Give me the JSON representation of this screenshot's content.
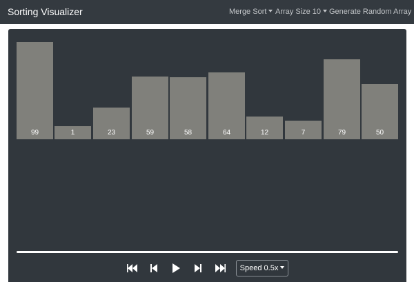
{
  "navbar": {
    "brand": "Sorting Visualizer",
    "algorithm_menu": "Merge Sort",
    "array_size_menu": "Array Size 10",
    "generate_label": "Generate Random Array"
  },
  "bars": [
    {
      "value": "99"
    },
    {
      "value": "1"
    },
    {
      "value": "23"
    },
    {
      "value": "59"
    },
    {
      "value": "58"
    },
    {
      "value": "64"
    },
    {
      "value": "12"
    },
    {
      "value": "7"
    },
    {
      "value": "79"
    },
    {
      "value": "50"
    }
  ],
  "colors": {
    "navbar": "#343a40",
    "panel": "#31373d",
    "bar": "#80807b"
  },
  "controls": {
    "icons": [
      "skip-to-start-icon",
      "step-back-icon",
      "play-icon",
      "step-forward-icon",
      "skip-to-end-icon"
    ],
    "speed_label": "Speed 0.5x"
  }
}
